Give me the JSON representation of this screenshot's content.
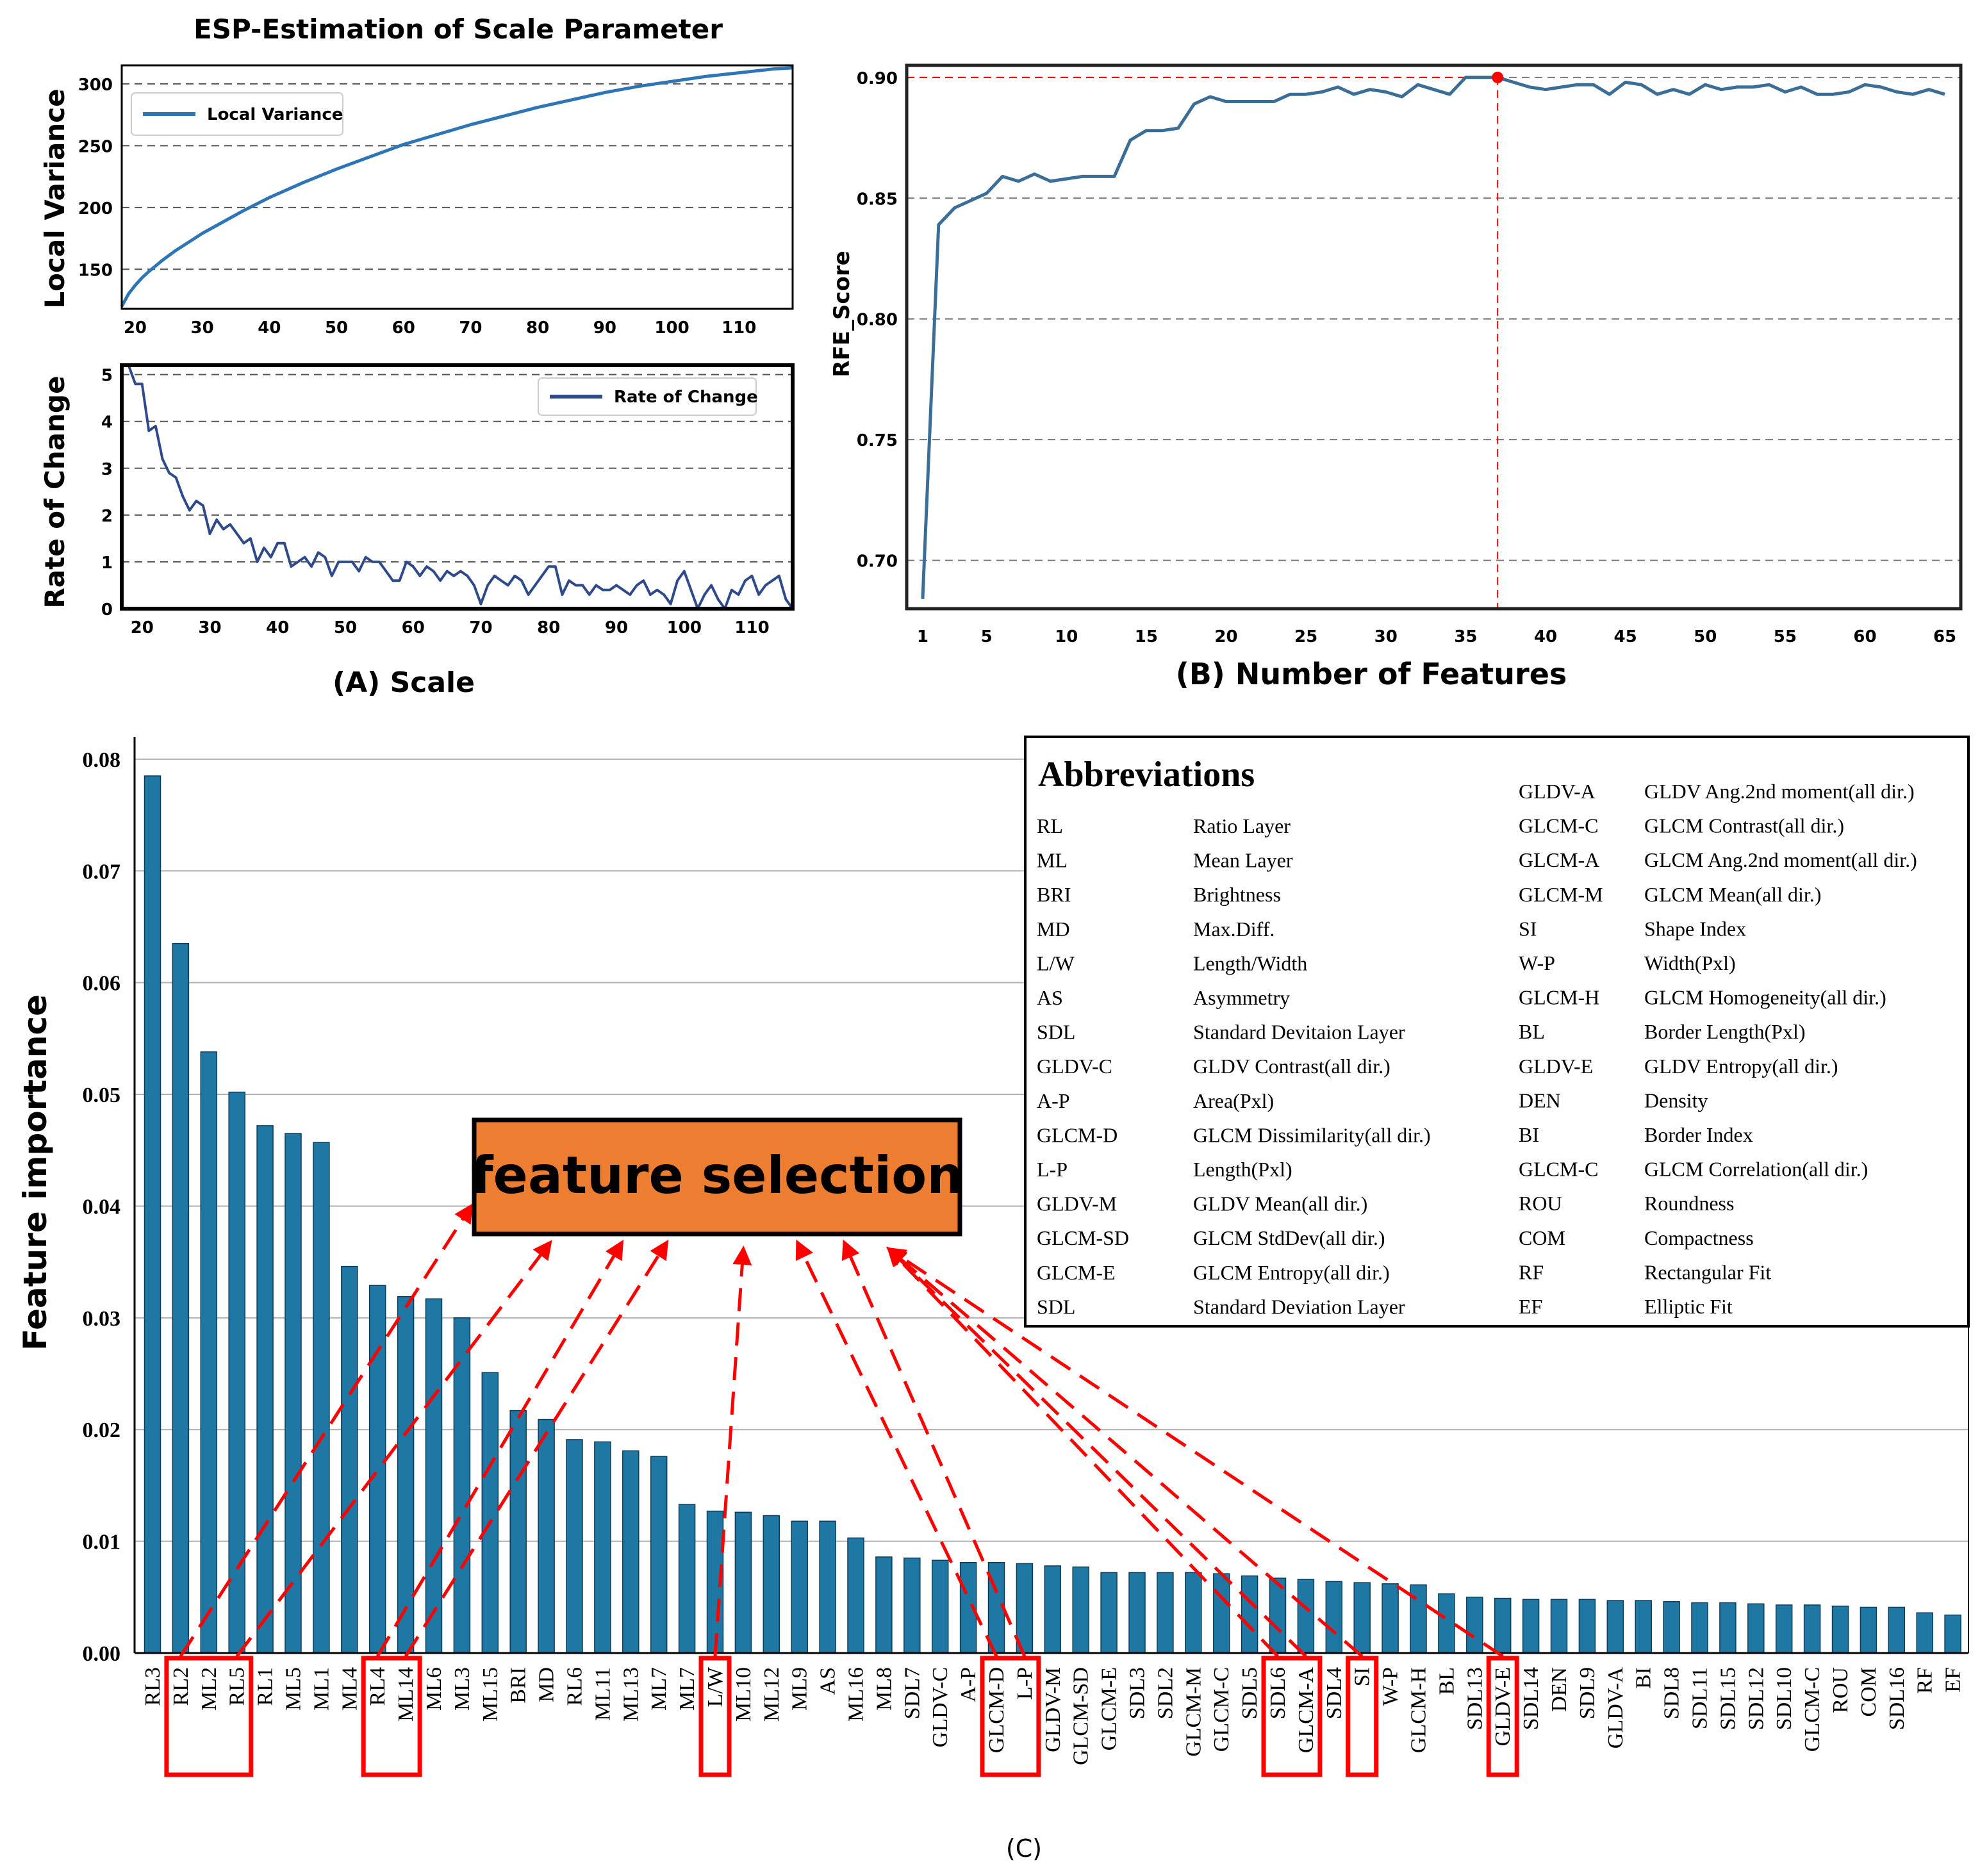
{
  "chart_data": [
    {
      "id": "A_top",
      "type": "line",
      "title": "ESP-Estimation of Scale Parameter",
      "ylabel": "Local Variance",
      "xlim": [
        18,
        118
      ],
      "ylim": [
        118,
        315
      ],
      "xticks": [
        20,
        30,
        40,
        50,
        60,
        70,
        80,
        90,
        100,
        110
      ],
      "yticks": [
        150,
        200,
        250,
        300
      ],
      "grid": "horizontal dashed",
      "legend": "top-left",
      "series": [
        {
          "name": "Local Variance",
          "color": "#2e75b6",
          "x": [
            18,
            19,
            20,
            21,
            22,
            24,
            26,
            28,
            30,
            33,
            36,
            40,
            45,
            50,
            55,
            60,
            65,
            70,
            75,
            80,
            85,
            90,
            95,
            100,
            105,
            110,
            115,
            118
          ],
          "y": [
            120,
            130,
            137,
            143,
            148,
            157,
            165,
            172,
            179,
            188,
            197,
            208,
            220,
            231,
            241,
            251,
            259,
            267,
            274,
            281,
            287,
            293,
            298,
            302,
            306,
            309,
            312,
            313
          ]
        }
      ]
    },
    {
      "id": "A_bottom",
      "type": "line",
      "ylabel": "Rate of Change",
      "xlabel": "(A) Scale",
      "xlim": [
        17,
        116
      ],
      "ylim": [
        0,
        5.2
      ],
      "xticks": [
        20,
        30,
        40,
        50,
        60,
        70,
        80,
        90,
        100,
        110
      ],
      "yticks": [
        0,
        1,
        2,
        3,
        4,
        5
      ],
      "grid": "horizontal dashed",
      "legend": "top-right",
      "series": [
        {
          "name": "Rate of Change",
          "color": "#2f4a8a",
          "x": [
            18,
            19,
            20,
            21,
            22,
            23,
            24,
            25,
            26,
            27,
            28,
            29,
            30,
            31,
            32,
            33,
            34,
            35,
            36,
            37,
            38,
            39,
            40,
            41,
            42,
            43,
            44,
            45,
            46,
            47,
            48,
            49,
            50,
            51,
            52,
            53,
            54,
            55,
            56,
            57,
            58,
            59,
            60,
            61,
            62,
            63,
            64,
            65,
            66,
            67,
            68,
            69,
            70,
            71,
            72,
            73,
            74,
            75,
            76,
            77,
            78,
            79,
            80,
            81,
            82,
            83,
            84,
            85,
            86,
            87,
            88,
            89,
            90,
            91,
            92,
            93,
            94,
            95,
            96,
            97,
            98,
            99,
            100,
            101,
            102,
            103,
            104,
            105,
            106,
            107,
            108,
            109,
            110,
            111,
            112,
            113,
            114,
            115,
            116
          ],
          "y": [
            5.2,
            4.8,
            4.8,
            3.8,
            3.9,
            3.2,
            2.9,
            2.8,
            2.4,
            2.1,
            2.3,
            2.2,
            1.6,
            1.9,
            1.7,
            1.8,
            1.6,
            1.4,
            1.5,
            1.0,
            1.3,
            1.1,
            1.4,
            1.4,
            0.9,
            1.0,
            1.1,
            0.9,
            1.2,
            1.1,
            0.7,
            1.0,
            1.0,
            1.0,
            0.8,
            1.1,
            1.0,
            1.0,
            0.8,
            0.6,
            0.6,
            1.0,
            0.9,
            0.7,
            0.9,
            0.8,
            0.6,
            0.8,
            0.7,
            0.8,
            0.7,
            0.5,
            0.1,
            0.5,
            0.7,
            0.6,
            0.5,
            0.7,
            0.6,
            0.3,
            0.5,
            0.7,
            0.9,
            0.9,
            0.3,
            0.6,
            0.5,
            0.5,
            0.3,
            0.5,
            0.4,
            0.4,
            0.5,
            0.4,
            0.3,
            0.5,
            0.6,
            0.3,
            0.4,
            0.3,
            0.1,
            0.6,
            0.8,
            0.4,
            0.0,
            0.3,
            0.5,
            0.2,
            0.0,
            0.4,
            0.3,
            0.6,
            0.7,
            0.3,
            0.5,
            0.6,
            0.7,
            0.2,
            0.0
          ]
        }
      ]
    },
    {
      "id": "B",
      "type": "line",
      "ylabel": "RFE_Score",
      "xlabel": "(B) Number of Features",
      "xlim": [
        0,
        66
      ],
      "ylim": [
        0.68,
        0.905
      ],
      "xticks": [
        1,
        5,
        10,
        15,
        20,
        25,
        30,
        35,
        40,
        45,
        50,
        55,
        60,
        65
      ],
      "yticks": [
        0.7,
        0.75,
        0.8,
        0.85,
        0.9
      ],
      "ytick_labels": [
        "0.70",
        "0.75",
        "0.80",
        "0.85",
        "0.90"
      ],
      "grid": "horizontal dashed",
      "highlight": {
        "x": 37,
        "y": 0.9,
        "color": "#ff0000"
      },
      "series": [
        {
          "name": "RFE_Score",
          "color": "#3b6e96",
          "x": [
            1,
            2,
            3,
            4,
            5,
            6,
            7,
            8,
            9,
            10,
            11,
            12,
            13,
            14,
            15,
            16,
            17,
            18,
            19,
            20,
            21,
            22,
            23,
            24,
            25,
            26,
            27,
            28,
            29,
            30,
            31,
            32,
            33,
            34,
            35,
            36,
            37,
            38,
            39,
            40,
            41,
            42,
            43,
            44,
            45,
            46,
            47,
            48,
            49,
            50,
            51,
            52,
            53,
            54,
            55,
            56,
            57,
            58,
            59,
            60,
            61,
            62,
            63,
            64,
            65
          ],
          "y": [
            0.684,
            0.839,
            0.846,
            0.849,
            0.852,
            0.859,
            0.857,
            0.86,
            0.857,
            0.858,
            0.859,
            0.859,
            0.859,
            0.874,
            0.878,
            0.878,
            0.879,
            0.889,
            0.892,
            0.89,
            0.89,
            0.89,
            0.89,
            0.893,
            0.893,
            0.894,
            0.896,
            0.893,
            0.895,
            0.894,
            0.892,
            0.897,
            0.895,
            0.893,
            0.9,
            0.9,
            0.9,
            0.898,
            0.896,
            0.895,
            0.896,
            0.897,
            0.897,
            0.893,
            0.898,
            0.897,
            0.893,
            0.895,
            0.893,
            0.897,
            0.895,
            0.896,
            0.896,
            0.897,
            0.894,
            0.896,
            0.893,
            0.893,
            0.894,
            0.897,
            0.896,
            0.894,
            0.893,
            0.895,
            0.893
          ]
        }
      ]
    },
    {
      "id": "C",
      "type": "bar",
      "ylabel": "Feature importance",
      "xlabel": "(C)",
      "ylim": [
        0,
        0.082
      ],
      "yticks": [
        0,
        0.01,
        0.02,
        0.03,
        0.04,
        0.05,
        0.06,
        0.07,
        0.08
      ],
      "ytick_labels": [
        "0.00",
        "0.01",
        "0.02",
        "0.03",
        "0.04",
        "0.05",
        "0.06",
        "0.07",
        "0.08"
      ],
      "bar_color": "#1f77a4",
      "categories": [
        "RL3",
        "RL2",
        "ML2",
        "RL5",
        "RL1",
        "ML5",
        "ML1",
        "ML4",
        "RL4",
        "ML14",
        "ML6",
        "ML3",
        "ML15",
        "BRI",
        "MD",
        "RL6",
        "ML11",
        "ML13",
        "ML7",
        "ML7",
        "L/W",
        "ML10",
        "ML12",
        "ML9",
        "AS",
        "ML16",
        "ML8",
        "SDL7",
        "GLDV-C",
        "A-P",
        "GLCM-D",
        "L-P",
        "GLDV-M",
        "GLCM-SD",
        "GLCM-E",
        "SDL3",
        "SDL2",
        "GLCM-M",
        "GLCM-C",
        "SDL5",
        "SDL6",
        "GLCM-A",
        "SDL4",
        "SI",
        "W-P",
        "GLCM-H",
        "BL",
        "SDL13",
        "GLDV-E",
        "SDL14",
        "DEN",
        "SDL9",
        "GLDV-A",
        "BI",
        "SDL8",
        "SDL11",
        "SDL15",
        "SDL12",
        "SDL10",
        "GLCM-C",
        "ROU",
        "COM",
        "SDL16",
        "RF",
        "EF"
      ],
      "values": [
        0.0785,
        0.0635,
        0.0538,
        0.0502,
        0.0472,
        0.0465,
        0.0457,
        0.0346,
        0.0329,
        0.0319,
        0.0317,
        0.03,
        0.0251,
        0.0217,
        0.0209,
        0.0191,
        0.0189,
        0.0181,
        0.0176,
        0.0133,
        0.0127,
        0.0126,
        0.0123,
        0.0118,
        0.0118,
        0.0103,
        0.0086,
        0.0085,
        0.0083,
        0.0081,
        0.0081,
        0.008,
        0.0078,
        0.0077,
        0.0072,
        0.0072,
        0.0072,
        0.0072,
        0.0071,
        0.0069,
        0.0067,
        0.0066,
        0.0064,
        0.0063,
        0.0062,
        0.0061,
        0.0053,
        0.005,
        0.0049,
        0.0048,
        0.0048,
        0.0048,
        0.0047,
        0.0047,
        0.0046,
        0.0045,
        0.0045,
        0.0044,
        0.0043,
        0.0043,
        0.0042,
        0.0041,
        0.0041,
        0.0036,
        0.0034
      ],
      "selected_groups": [
        [
          1,
          3
        ],
        [
          8,
          9
        ],
        [
          20,
          20
        ],
        [
          30,
          31
        ],
        [
          40,
          41
        ],
        [
          43,
          43
        ],
        [
          48,
          48
        ]
      ],
      "annotation": {
        "text": "feature selection",
        "fill": "#ed7d31"
      }
    }
  ],
  "abbreviations": {
    "title": "Abbreviations",
    "left": [
      [
        "RL",
        "Ratio Layer"
      ],
      [
        "ML",
        "Mean Layer"
      ],
      [
        "BRI",
        "Brightness"
      ],
      [
        "MD",
        "Max.Diff."
      ],
      [
        "L/W",
        "Length/Width"
      ],
      [
        "AS",
        "Asymmetry"
      ],
      [
        "SDL",
        "Standard Devitaion Layer"
      ],
      [
        "GLDV-C",
        "GLDV Contrast(all dir.)"
      ],
      [
        "A-P",
        "Area(Pxl)"
      ],
      [
        "GLCM-D",
        "GLCM Dissimilarity(all dir.)"
      ],
      [
        "L-P",
        "Length(Pxl)"
      ],
      [
        "GLDV-M",
        "GLDV Mean(all dir.)"
      ],
      [
        "GLCM-SD",
        "GLCM StdDev(all dir.)"
      ],
      [
        "GLCM-E",
        "GLCM Entropy(all dir.)"
      ],
      [
        "SDL",
        "Standard Deviation Layer"
      ]
    ],
    "right": [
      [
        "GLDV-A",
        "GLDV Ang.2nd moment(all dir.)"
      ],
      [
        "GLCM-C",
        "GLCM Contrast(all dir.)"
      ],
      [
        "GLCM-A",
        "GLCM Ang.2nd moment(all dir.)"
      ],
      [
        "GLCM-M",
        "GLCM Mean(all dir.)"
      ],
      [
        "SI",
        "Shape Index"
      ],
      [
        "W-P",
        "Width(Pxl)"
      ],
      [
        "GLCM-H",
        "GLCM Homogeneity(all dir.)"
      ],
      [
        "BL",
        "Border Length(Pxl)"
      ],
      [
        "GLDV-E",
        "GLDV Entropy(all dir.)"
      ],
      [
        "DEN",
        "Density"
      ],
      [
        "BI",
        "Border Index"
      ],
      [
        "GLCM-C",
        "GLCM Correlation(all dir.)"
      ],
      [
        "ROU",
        "Roundness"
      ],
      [
        "COM",
        "Compactness"
      ],
      [
        "RF",
        "Rectangular Fit"
      ],
      [
        "EF",
        "Elliptic Fit"
      ]
    ]
  }
}
